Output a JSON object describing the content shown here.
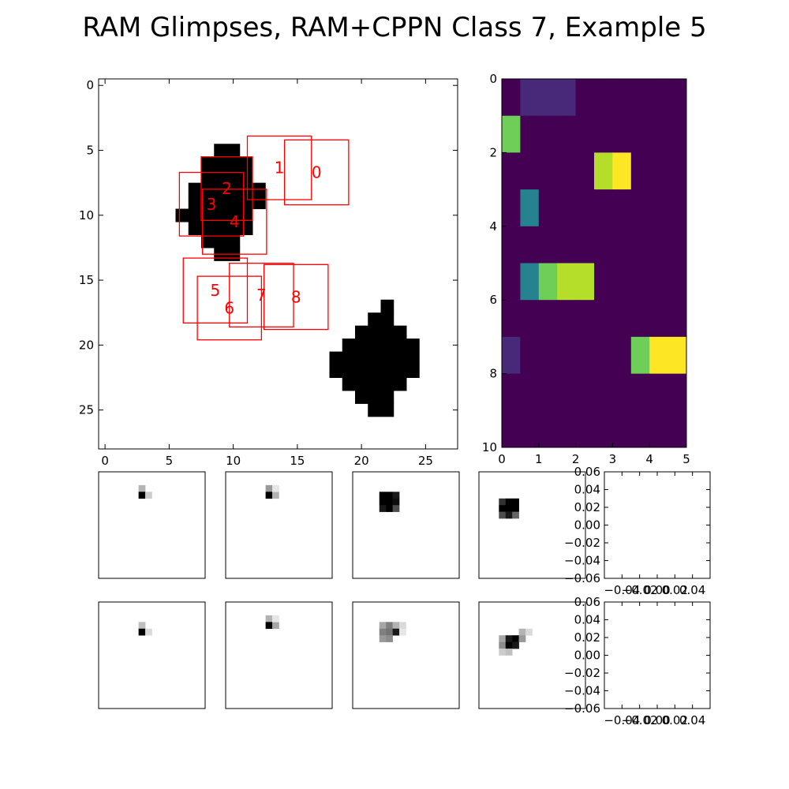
{
  "title": "RAM Glimpses, RAM+CPPN Class 7, Example 5",
  "colors": {
    "glimpse_box": "#ff0000",
    "ink": "#000000",
    "viridis": [
      "#440154",
      "#482878",
      "#3e4989",
      "#31688e",
      "#26828e",
      "#1f9e89",
      "#35b779",
      "#6ece58",
      "#b5de2b",
      "#fde725"
    ]
  },
  "chart_data": [
    {
      "type": "heatmap",
      "name": "input-image",
      "xlim": [
        -0.5,
        27.5
      ],
      "ylim": [
        28,
        -0.5
      ],
      "xticks": [
        "0",
        "5",
        "10",
        "15",
        "20",
        "25"
      ],
      "yticks": [
        "0",
        "5",
        "10",
        "15",
        "20",
        "25"
      ],
      "shapes": [
        {
          "rows": [
            {
              "y": 5,
              "x0": 9,
              "x1": 10
            },
            {
              "y": 6,
              "x0": 8,
              "x1": 11
            },
            {
              "y": 7,
              "x0": 8,
              "x1": 11
            },
            {
              "y": 8,
              "x0": 7,
              "x1": 12
            },
            {
              "y": 9,
              "x0": 7,
              "x1": 12
            },
            {
              "y": 10,
              "x0": 6,
              "x1": 11
            },
            {
              "y": 11,
              "x0": 7,
              "x1": 11
            },
            {
              "y": 12,
              "x0": 8,
              "x1": 10
            },
            {
              "y": 13,
              "x0": 9,
              "x1": 10
            }
          ]
        },
        {
          "rows": [
            {
              "y": 17,
              "x0": 22,
              "x1": 22
            },
            {
              "y": 18,
              "x0": 21,
              "x1": 22
            },
            {
              "y": 19,
              "x0": 20,
              "x1": 23
            },
            {
              "y": 20,
              "x0": 19,
              "x1": 24
            },
            {
              "y": 21,
              "x0": 18,
              "x1": 24
            },
            {
              "y": 22,
              "x0": 18,
              "x1": 24
            },
            {
              "y": 23,
              "x0": 19,
              "x1": 23
            },
            {
              "y": 24,
              "x0": 20,
              "x1": 22
            },
            {
              "y": 25,
              "x0": 21,
              "x1": 22
            }
          ]
        }
      ],
      "glimpses": [
        {
          "label": "0",
          "x0": 14.0,
          "y0": 4.2,
          "x1": 19.0,
          "y1": 9.2
        },
        {
          "label": "1",
          "x0": 11.1,
          "y0": 3.9,
          "x1": 16.1,
          "y1": 8.8
        },
        {
          "label": "2",
          "x0": 7.5,
          "y0": 5.5,
          "x1": 11.5,
          "y1": 10.4
        },
        {
          "label": "3",
          "x0": 5.8,
          "y0": 6.7,
          "x1": 10.8,
          "y1": 11.6
        },
        {
          "label": "4",
          "x0": 7.6,
          "y0": 8.0,
          "x1": 12.6,
          "y1": 13.0
        },
        {
          "label": "5",
          "x0": 6.1,
          "y0": 13.3,
          "x1": 11.1,
          "y1": 18.3
        },
        {
          "label": "6",
          "x0": 7.2,
          "y0": 14.7,
          "x1": 12.2,
          "y1": 19.6
        },
        {
          "label": "7",
          "x0": 9.7,
          "y0": 13.7,
          "x1": 14.7,
          "y1": 18.6
        },
        {
          "label": "8",
          "x0": 12.4,
          "y0": 13.8,
          "x1": 17.4,
          "y1": 18.8
        }
      ]
    },
    {
      "type": "heatmap",
      "name": "activations",
      "xlim": [
        0,
        5
      ],
      "ylim": [
        10,
        0
      ],
      "xticks": [
        "0",
        "1",
        "2",
        "3",
        "4",
        "5"
      ],
      "yticks": [
        "0",
        "2",
        "4",
        "6",
        "8",
        "10"
      ],
      "values": [
        [
          0.0,
          0.07,
          0.14,
          0.08,
          0.0,
          0.0,
          0.0,
          0.0,
          0.0,
          0.0
        ],
        [
          0.75,
          0.0,
          0.0,
          0.0,
          0.0,
          0.0,
          0.0,
          0.0,
          0.0,
          0.0
        ],
        [
          0.02,
          0.0,
          0.0,
          0.02,
          0.0,
          0.93,
          0.98,
          0.05,
          0.0,
          0.0
        ],
        [
          0.0,
          0.48,
          0.03,
          0.0,
          0.0,
          0.0,
          0.01,
          0.04,
          0.0,
          0.0
        ],
        [
          0.0,
          0.0,
          0.0,
          0.0,
          0.03,
          0.0,
          0.0,
          0.04,
          0.0,
          0.0
        ],
        [
          0.0,
          0.45,
          0.76,
          0.88,
          0.88,
          0.01,
          0.0,
          0.0,
          0.0,
          0.0
        ],
        [
          0.0,
          0.0,
          0.0,
          0.0,
          0.0,
          0.0,
          0.0,
          0.0,
          0.0,
          0.0
        ],
        [
          0.1,
          0.02,
          0.0,
          0.0,
          0.0,
          0.0,
          0.0,
          0.75,
          0.98,
          0.98
        ],
        [
          0.0,
          0.0,
          0.0,
          0.0,
          0.02,
          0.02,
          0.0,
          0.0,
          0.0,
          0.0
        ],
        [
          0.0,
          0.0,
          0.0,
          0.0,
          0.0,
          0.01,
          0.0,
          0.0,
          0.0,
          0.0
        ]
      ]
    },
    {
      "type": "heatmap",
      "name": "glimpse-patches",
      "grid": 16,
      "rows": [
        [
          [
            {
              "x": 6,
              "y": 2,
              "v": 0.3
            },
            {
              "x": 6,
              "y": 3,
              "v": 1.0
            },
            {
              "x": 7,
              "y": 3,
              "v": 0.2
            }
          ],
          [
            {
              "x": 6,
              "y": 2,
              "v": 0.4
            },
            {
              "x": 6,
              "y": 3,
              "v": 1.0
            },
            {
              "x": 7,
              "y": 3,
              "v": 0.3
            },
            {
              "x": 7,
              "y": 2,
              "v": 0.1
            }
          ],
          [
            {
              "x": 4,
              "y": 3,
              "v": 1.0
            },
            {
              "x": 5,
              "y": 3,
              "v": 1.0
            },
            {
              "x": 6,
              "y": 3,
              "v": 0.9
            },
            {
              "x": 4,
              "y": 4,
              "v": 1.0
            },
            {
              "x": 5,
              "y": 4,
              "v": 1.0
            },
            {
              "x": 6,
              "y": 4,
              "v": 0.95
            },
            {
              "x": 4,
              "y": 5,
              "v": 0.9
            },
            {
              "x": 5,
              "y": 5,
              "v": 1.0
            },
            {
              "x": 6,
              "y": 5,
              "v": 0.7
            }
          ],
          [
            {
              "x": 3,
              "y": 4,
              "v": 0.8
            },
            {
              "x": 4,
              "y": 4,
              "v": 1.0
            },
            {
              "x": 5,
              "y": 4,
              "v": 1.0
            },
            {
              "x": 3,
              "y": 5,
              "v": 1.0
            },
            {
              "x": 4,
              "y": 5,
              "v": 1.0
            },
            {
              "x": 5,
              "y": 5,
              "v": 1.0
            },
            {
              "x": 3,
              "y": 6,
              "v": 0.7
            },
            {
              "x": 4,
              "y": 6,
              "v": 0.9
            },
            {
              "x": 5,
              "y": 6,
              "v": 0.6
            }
          ]
        ],
        [
          [
            {
              "x": 6,
              "y": 3,
              "v": 0.25
            },
            {
              "x": 6,
              "y": 4,
              "v": 1.0
            },
            {
              "x": 7,
              "y": 4,
              "v": 0.15
            }
          ],
          [
            {
              "x": 6,
              "y": 2,
              "v": 0.3
            },
            {
              "x": 6,
              "y": 3,
              "v": 1.0
            },
            {
              "x": 7,
              "y": 3,
              "v": 0.35
            },
            {
              "x": 7,
              "y": 2,
              "v": 0.1
            }
          ],
          [
            {
              "x": 4,
              "y": 3,
              "v": 0.35
            },
            {
              "x": 5,
              "y": 3,
              "v": 0.5
            },
            {
              "x": 6,
              "y": 3,
              "v": 0.3
            },
            {
              "x": 4,
              "y": 4,
              "v": 0.5
            },
            {
              "x": 5,
              "y": 4,
              "v": 0.55
            },
            {
              "x": 6,
              "y": 4,
              "v": 0.9
            },
            {
              "x": 4,
              "y": 5,
              "v": 0.4
            },
            {
              "x": 5,
              "y": 5,
              "v": 0.45
            },
            {
              "x": 7,
              "y": 3,
              "v": 0.15
            },
            {
              "x": 7,
              "y": 4,
              "v": 0.1
            }
          ],
          [
            {
              "x": 3,
              "y": 5,
              "v": 0.35
            },
            {
              "x": 4,
              "y": 5,
              "v": 0.9
            },
            {
              "x": 5,
              "y": 5,
              "v": 1.0
            },
            {
              "x": 3,
              "y": 6,
              "v": 0.45
            },
            {
              "x": 4,
              "y": 6,
              "v": 1.0
            },
            {
              "x": 5,
              "y": 6,
              "v": 0.9
            },
            {
              "x": 6,
              "y": 4,
              "v": 0.3
            },
            {
              "x": 6,
              "y": 5,
              "v": 0.4
            },
            {
              "x": 3,
              "y": 7,
              "v": 0.2
            },
            {
              "x": 4,
              "y": 7,
              "v": 0.25
            },
            {
              "x": 7,
              "y": 4,
              "v": 0.15
            }
          ]
        ]
      ]
    },
    {
      "type": "scatter",
      "name": "empty-axes",
      "x": [],
      "y": [],
      "xticks": [
        "−0.04",
        "−0.02",
        "0.00",
        "0.02",
        "0.04"
      ],
      "yticks": [
        "0.06",
        "0.04",
        "0.02",
        "0.00",
        "−0.02",
        "−0.04",
        "−0.06"
      ],
      "xlim": [
        -0.06,
        0.06
      ],
      "ylim": [
        -0.06,
        0.06
      ]
    }
  ]
}
